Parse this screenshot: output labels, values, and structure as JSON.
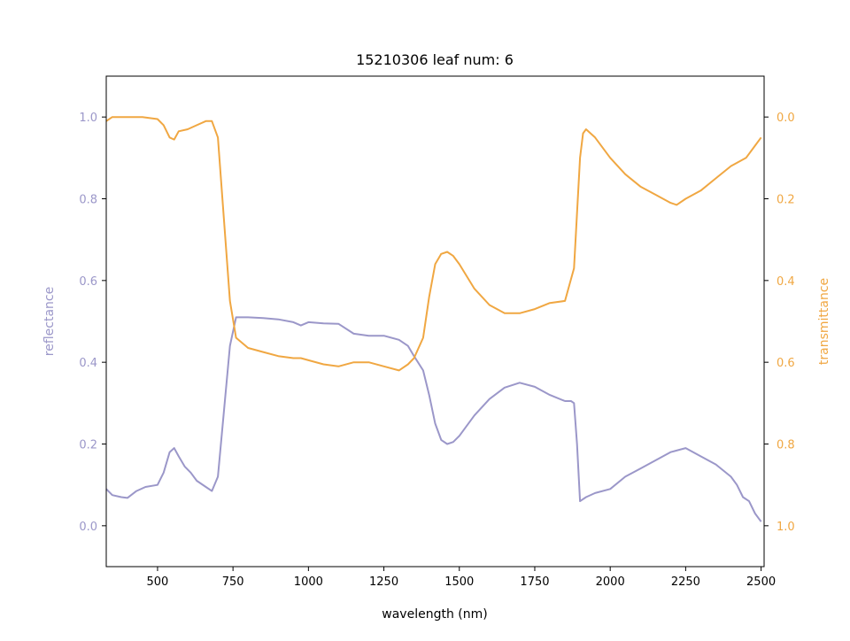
{
  "chart_data": {
    "type": "line",
    "title": "15210306 leaf num: 6",
    "xlabel": "wavelength (nm)",
    "ylabel_left": "reflectance",
    "ylabel_right": "transmittance",
    "xlim": [
      330,
      2510
    ],
    "ylim_left": [
      -0.1,
      1.1
    ],
    "ylim_right": [
      1.1,
      -0.1
    ],
    "right_axis_inverted": true,
    "grid": false,
    "legend": "none",
    "x_ticks": [
      500,
      750,
      1000,
      1250,
      1500,
      1750,
      2000,
      2250,
      2500
    ],
    "y_left_ticks": [
      0.0,
      0.2,
      0.4,
      0.6,
      0.8,
      1.0
    ],
    "y_right_ticks": [
      0.0,
      0.2,
      0.4,
      0.6,
      0.8,
      1.0
    ],
    "series": [
      {
        "axis": "left",
        "color": "#9b97c9",
        "x": [
          330,
          350,
          380,
          400,
          430,
          460,
          500,
          520,
          540,
          555,
          570,
          590,
          610,
          630,
          660,
          680,
          700,
          720,
          740,
          760,
          800,
          850,
          900,
          950,
          975,
          1000,
          1050,
          1100,
          1150,
          1200,
          1250,
          1300,
          1330,
          1350,
          1380,
          1400,
          1420,
          1440,
          1460,
          1480,
          1500,
          1550,
          1600,
          1650,
          1700,
          1750,
          1800,
          1850,
          1870,
          1880,
          1890,
          1900,
          1920,
          1950,
          2000,
          2050,
          2100,
          2150,
          2200,
          2250,
          2300,
          2350,
          2400,
          2420,
          2440,
          2460,
          2480,
          2500
        ],
        "y": [
          0.09,
          0.075,
          0.07,
          0.068,
          0.085,
          0.095,
          0.1,
          0.13,
          0.18,
          0.19,
          0.17,
          0.145,
          0.13,
          0.11,
          0.095,
          0.085,
          0.12,
          0.28,
          0.44,
          0.51,
          0.51,
          0.508,
          0.505,
          0.498,
          0.49,
          0.498,
          0.495,
          0.494,
          0.47,
          0.465,
          0.465,
          0.455,
          0.44,
          0.415,
          0.38,
          0.32,
          0.25,
          0.21,
          0.2,
          0.205,
          0.22,
          0.27,
          0.31,
          0.338,
          0.35,
          0.34,
          0.32,
          0.305,
          0.305,
          0.3,
          0.2,
          0.06,
          0.07,
          0.08,
          0.09,
          0.12,
          0.14,
          0.16,
          0.18,
          0.19,
          0.17,
          0.15,
          0.12,
          0.1,
          0.07,
          0.06,
          0.03,
          0.01
        ]
      },
      {
        "axis": "right",
        "color": "#f0a742",
        "x": [
          330,
          350,
          400,
          450,
          500,
          520,
          540,
          555,
          570,
          600,
          630,
          660,
          680,
          700,
          720,
          740,
          760,
          800,
          850,
          900,
          950,
          975,
          1000,
          1050,
          1100,
          1150,
          1200,
          1250,
          1300,
          1330,
          1350,
          1380,
          1400,
          1420,
          1440,
          1460,
          1480,
          1500,
          1550,
          1600,
          1650,
          1700,
          1750,
          1800,
          1850,
          1880,
          1900,
          1910,
          1920,
          1950,
          2000,
          2050,
          2100,
          2150,
          2200,
          2220,
          2250,
          2300,
          2350,
          2400,
          2450,
          2480,
          2500
        ],
        "y": [
          0.01,
          0.0,
          0.0,
          0.0,
          0.005,
          0.02,
          0.05,
          0.055,
          0.035,
          0.03,
          0.02,
          0.01,
          0.01,
          0.05,
          0.25,
          0.45,
          0.54,
          0.565,
          0.575,
          0.585,
          0.59,
          0.59,
          0.595,
          0.605,
          0.61,
          0.6,
          0.6,
          0.61,
          0.62,
          0.605,
          0.59,
          0.54,
          0.44,
          0.36,
          0.335,
          0.33,
          0.34,
          0.36,
          0.42,
          0.46,
          0.48,
          0.48,
          0.47,
          0.455,
          0.45,
          0.37,
          0.1,
          0.04,
          0.03,
          0.05,
          0.1,
          0.14,
          0.17,
          0.19,
          0.21,
          0.215,
          0.2,
          0.18,
          0.15,
          0.12,
          0.1,
          0.07,
          0.05
        ]
      }
    ]
  }
}
